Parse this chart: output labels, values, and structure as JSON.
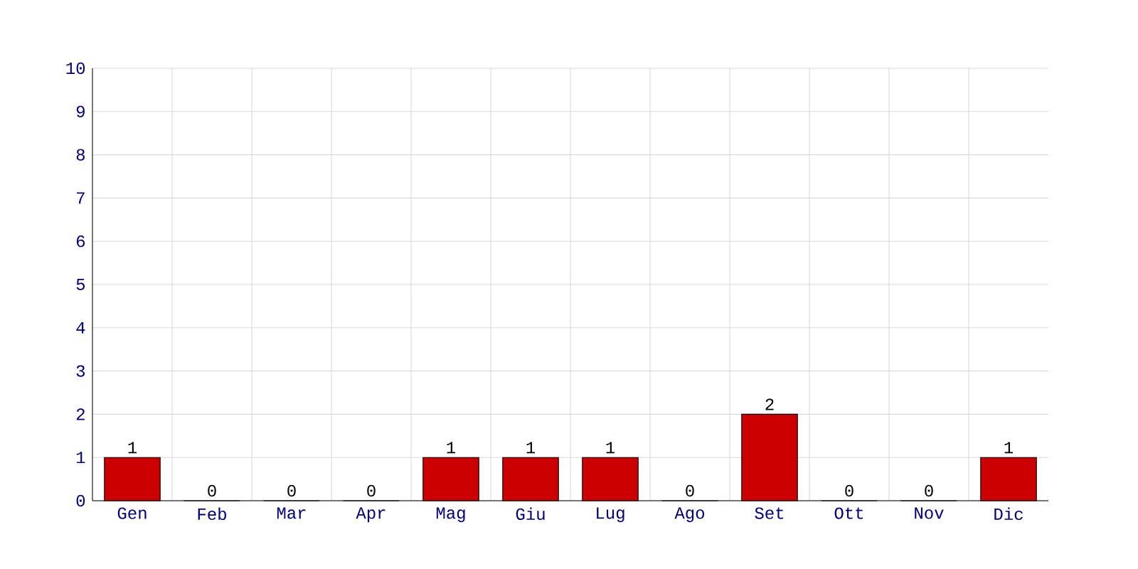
{
  "chart_data": {
    "type": "bar",
    "categories": [
      "Gen",
      "Feb",
      "Mar",
      "Apr",
      "Mag",
      "Giu",
      "Lug",
      "Ago",
      "Set",
      "Ott",
      "Nov",
      "Dic"
    ],
    "values": [
      1,
      0,
      0,
      0,
      1,
      1,
      1,
      0,
      2,
      0,
      0,
      1
    ],
    "color": "#cc0000",
    "ylim": [
      0,
      10
    ],
    "yticks": [
      0,
      1,
      2,
      3,
      4,
      5,
      6,
      7,
      8,
      9,
      10
    ],
    "grid": true,
    "data_labels": true
  }
}
